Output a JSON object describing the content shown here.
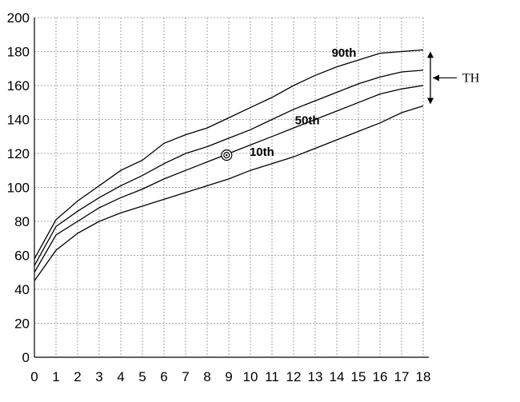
{
  "chart_data": {
    "type": "line",
    "x": [
      0,
      1,
      2,
      3,
      4,
      5,
      6,
      7,
      8,
      9,
      10,
      11,
      12,
      13,
      14,
      15,
      16,
      17,
      18
    ],
    "xlim": [
      0,
      18
    ],
    "ylim": [
      0,
      200
    ],
    "x_ticks": [
      "0",
      "1",
      "2",
      "3",
      "4",
      "5",
      "6",
      "7",
      "8",
      "9",
      "10",
      "11",
      "12",
      "13",
      "14",
      "15",
      "16",
      "17",
      "18"
    ],
    "y_ticks": [
      "0",
      "20",
      "40",
      "60",
      "80",
      "100",
      "120",
      "140",
      "160",
      "180",
      "200"
    ],
    "grid": true,
    "series": [
      {
        "name": "90th",
        "values": [
          58,
          81,
          92,
          101,
          110,
          116,
          126,
          131,
          135,
          141,
          147,
          153,
          160,
          166,
          171,
          175,
          179,
          180,
          181
        ]
      },
      {
        "name": "",
        "values": [
          54,
          77,
          86,
          94,
          101,
          107,
          114,
          120,
          124,
          129,
          134,
          140,
          146,
          151,
          156,
          161,
          165,
          168,
          169
        ]
      },
      {
        "name": "50th",
        "values": [
          50,
          72,
          80,
          88,
          94,
          99,
          105,
          110,
          115,
          120,
          125,
          130,
          135,
          140,
          145,
          150,
          155,
          158,
          160
        ]
      },
      {
        "name": "10th",
        "values": [
          45,
          63,
          73,
          80,
          85,
          89,
          93,
          97,
          101,
          105,
          110,
          114,
          118,
          123,
          128,
          133,
          138,
          144,
          148
        ]
      }
    ],
    "marker": {
      "x": 8.9,
      "y": 119
    },
    "target_height": {
      "label": "TH",
      "range": [
        148,
        181
      ]
    }
  }
}
